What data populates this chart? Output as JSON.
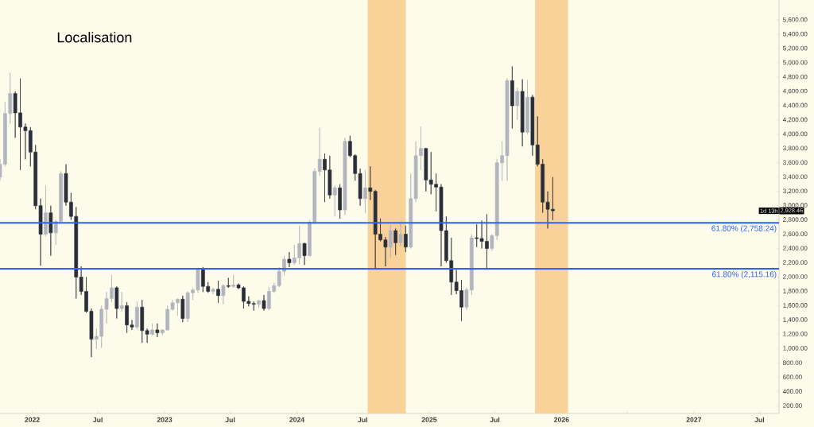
{
  "chart_data": {
    "type": "candlestick",
    "title": "Localisation",
    "x": [
      "2021-10-04",
      "2021-10-18",
      "2021-11-01",
      "2021-11-15",
      "2021-11-29",
      "2021-12-13",
      "2021-12-27",
      "2022-01-10",
      "2022-01-24",
      "2022-02-07",
      "2022-02-21",
      "2022-03-07",
      "2022-03-21",
      "2022-04-04",
      "2022-04-18",
      "2022-05-02",
      "2022-05-16",
      "2022-05-30",
      "2022-06-13",
      "2022-06-27",
      "2022-07-11",
      "2022-07-25",
      "2022-08-08",
      "2022-08-22",
      "2022-09-05",
      "2022-09-19",
      "2022-10-03",
      "2022-10-17",
      "2022-10-31",
      "2022-11-14",
      "2022-11-28",
      "2022-12-12",
      "2022-12-26",
      "2023-01-09",
      "2023-01-23",
      "2023-02-06",
      "2023-02-20",
      "2023-03-06",
      "2023-03-20",
      "2023-04-03",
      "2023-04-17",
      "2023-05-01",
      "2023-05-15",
      "2023-05-29",
      "2023-06-12",
      "2023-06-26",
      "2023-07-10",
      "2023-07-24",
      "2023-08-07",
      "2023-08-21",
      "2023-09-04",
      "2023-09-18",
      "2023-10-02",
      "2023-10-16",
      "2023-10-30",
      "2023-11-13",
      "2023-11-27",
      "2023-12-11",
      "2023-12-25",
      "2024-01-08",
      "2024-01-22",
      "2024-02-05",
      "2024-02-19",
      "2024-03-04",
      "2024-03-18",
      "2024-04-01",
      "2024-04-15",
      "2024-04-29",
      "2024-05-13",
      "2024-05-27",
      "2024-06-10",
      "2024-06-24",
      "2024-07-08",
      "2024-07-22",
      "2024-08-05",
      "2024-08-19",
      "2024-09-02",
      "2024-09-16",
      "2024-09-30",
      "2024-10-14",
      "2024-10-28",
      "2024-11-11",
      "2024-11-25",
      "2024-12-09",
      "2024-12-23",
      "2025-01-06",
      "2025-01-20",
      "2025-02-03",
      "2025-02-17",
      "2025-03-03",
      "2025-03-17",
      "2025-03-31",
      "2025-04-14",
      "2025-04-28",
      "2025-05-12",
      "2025-05-26",
      "2025-06-09",
      "2025-06-23",
      "2025-07-07",
      "2025-07-21",
      "2025-08-04",
      "2025-08-18",
      "2025-09-01",
      "2025-09-15",
      "2025-09-29",
      "2025-10-13",
      "2025-10-27",
      "2025-11-10",
      "2025-11-24",
      "2025-12-08"
    ],
    "ohlc": [
      [
        3400,
        3650,
        3350,
        3580
      ],
      [
        3580,
        4450,
        3550,
        4290
      ],
      [
        4290,
        4860,
        4150,
        4570
      ],
      [
        4570,
        4600,
        3950,
        4300
      ],
      [
        4300,
        4780,
        3500,
        4100
      ],
      [
        4100,
        4150,
        3650,
        4050
      ],
      [
        4050,
        4100,
        3550,
        3750
      ],
      [
        3750,
        3850,
        2950,
        3000
      ],
      [
        3000,
        3100,
        2160,
        2600
      ],
      [
        2600,
        3280,
        2570,
        2900
      ],
      [
        2900,
        3000,
        2300,
        2620
      ],
      [
        2620,
        2800,
        2450,
        2780
      ],
      [
        2780,
        3480,
        2760,
        3450
      ],
      [
        3450,
        3580,
        3000,
        3050
      ],
      [
        3050,
        3180,
        2800,
        2850
      ],
      [
        2850,
        2980,
        1700,
        2000
      ],
      [
        2000,
        2150,
        1750,
        1800
      ],
      [
        1800,
        2000,
        1500,
        1520
      ],
      [
        1520,
        1560,
        880,
        1130
      ],
      [
        1130,
        1280,
        1000,
        1170
      ],
      [
        1170,
        1600,
        1010,
        1550
      ],
      [
        1550,
        1790,
        1350,
        1700
      ],
      [
        1700,
        2030,
        1650,
        1850
      ],
      [
        1850,
        1870,
        1420,
        1560
      ],
      [
        1560,
        1790,
        1520,
        1600
      ],
      [
        1600,
        1650,
        1220,
        1330
      ],
      [
        1330,
        1400,
        1260,
        1300
      ],
      [
        1300,
        1660,
        1270,
        1580
      ],
      [
        1580,
        1680,
        1080,
        1250
      ],
      [
        1250,
        1280,
        1080,
        1200
      ],
      [
        1200,
        1350,
        1180,
        1260
      ],
      [
        1260,
        1350,
        1160,
        1220
      ],
      [
        1220,
        1270,
        1190,
        1260
      ],
      [
        1260,
        1600,
        1250,
        1550
      ],
      [
        1550,
        1680,
        1530,
        1640
      ],
      [
        1640,
        1700,
        1460,
        1690
      ],
      [
        1690,
        1740,
        1370,
        1420
      ],
      [
        1420,
        1800,
        1370,
        1780
      ],
      [
        1780,
        1850,
        1680,
        1820
      ],
      [
        1820,
        2130,
        1780,
        2100
      ],
      [
        2100,
        2140,
        1790,
        1870
      ],
      [
        1870,
        1930,
        1780,
        1800
      ],
      [
        1800,
        1850,
        1760,
        1830
      ],
      [
        1830,
        1950,
        1640,
        1740
      ],
      [
        1740,
        1900,
        1620,
        1880
      ],
      [
        1880,
        1990,
        1850,
        1870
      ],
      [
        1870,
        2030,
        1850,
        1890
      ],
      [
        1890,
        1910,
        1830,
        1850
      ],
      [
        1850,
        1870,
        1560,
        1660
      ],
      [
        1660,
        1730,
        1590,
        1630
      ],
      [
        1630,
        1660,
        1530,
        1620
      ],
      [
        1620,
        1670,
        1570,
        1670
      ],
      [
        1670,
        1750,
        1530,
        1560
      ],
      [
        1560,
        1860,
        1540,
        1800
      ],
      [
        1800,
        1920,
        1780,
        1880
      ],
      [
        1880,
        2140,
        1860,
        2080
      ],
      [
        2080,
        2300,
        2020,
        2250
      ],
      [
        2250,
        2350,
        2140,
        2200
      ],
      [
        2200,
        2450,
        2170,
        2270
      ],
      [
        2270,
        2720,
        2180,
        2470
      ],
      [
        2470,
        2480,
        2170,
        2300
      ],
      [
        2300,
        2800,
        2290,
        2770
      ],
      [
        2770,
        3520,
        2740,
        3480
      ],
      [
        3480,
        4090,
        3420,
        3650
      ],
      [
        3650,
        3730,
        3050,
        3500
      ],
      [
        3500,
        3700,
        3100,
        3150
      ],
      [
        3150,
        3280,
        2850,
        3250
      ],
      [
        3250,
        3300,
        2820,
        2940
      ],
      [
        2940,
        3950,
        2870,
        3900
      ],
      [
        3900,
        3980,
        3680,
        3700
      ],
      [
        3700,
        3720,
        3350,
        3450
      ],
      [
        3450,
        3520,
        3000,
        3100
      ],
      [
        3100,
        3500,
        2900,
        3250
      ],
      [
        3250,
        3550,
        3080,
        3200
      ],
      [
        3200,
        3220,
        2110,
        2600
      ],
      [
        2600,
        2820,
        2500,
        2520
      ],
      [
        2520,
        2560,
        2150,
        2420
      ],
      [
        2420,
        2730,
        2270,
        2650
      ],
      [
        2650,
        2680,
        2310,
        2480
      ],
      [
        2480,
        2780,
        2430,
        2600
      ],
      [
        2600,
        2720,
        2350,
        2420
      ],
      [
        2420,
        3450,
        2400,
        3100
      ],
      [
        3100,
        3900,
        3050,
        3700
      ],
      [
        3700,
        4110,
        3500,
        3800
      ],
      [
        3800,
        3810,
        3200,
        3360
      ],
      [
        3360,
        3750,
        3160,
        3300
      ],
      [
        3300,
        3450,
        2920,
        3260
      ],
      [
        3260,
        3300,
        2150,
        2650
      ],
      [
        2650,
        2850,
        2200,
        2230
      ],
      [
        2230,
        2550,
        1750,
        1930
      ],
      [
        1930,
        2100,
        1760,
        1810
      ],
      [
        1810,
        1960,
        1385,
        1580
      ],
      [
        1580,
        1850,
        1540,
        1820
      ],
      [
        1820,
        2600,
        1750,
        2550
      ],
      [
        2550,
        2740,
        2420,
        2540
      ],
      [
        2540,
        2790,
        2400,
        2500
      ],
      [
        2500,
        2880,
        2120,
        2400
      ],
      [
        2400,
        2600,
        2370,
        2580
      ],
      [
        2580,
        3650,
        2520,
        3600
      ],
      [
        3600,
        3900,
        3350,
        3700
      ],
      [
        3700,
        4780,
        3350,
        4750
      ],
      [
        4750,
        4950,
        4080,
        4400
      ],
      [
        4400,
        4650,
        4200,
        4600
      ],
      [
        4600,
        4770,
        3830,
        4030
      ],
      [
        4030,
        4760,
        4000,
        4520
      ],
      [
        4520,
        4550,
        3700,
        3850
      ],
      [
        3850,
        4250,
        3550,
        3580
      ],
      [
        3580,
        3650,
        2900,
        3050
      ],
      [
        3050,
        3200,
        2680,
        2950
      ],
      [
        2950,
        3400,
        2800,
        2928.46
      ]
    ],
    "xlim": [
      "2021-10-04",
      "2027-08-24"
    ],
    "xticks": [
      {
        "value": "2022",
        "label": "2022"
      },
      {
        "value": "2022-07",
        "label": "Jul"
      },
      {
        "value": "2023",
        "label": "2023"
      },
      {
        "value": "2023-07",
        "label": "Jul"
      },
      {
        "value": "2024",
        "label": "2024"
      },
      {
        "value": "2024-07",
        "label": "Jul"
      },
      {
        "value": "2025",
        "label": "2025"
      },
      {
        "value": "2025-07",
        "label": "Jul"
      },
      {
        "value": "2026",
        "label": "2026"
      },
      {
        "value": "2026-07",
        "label": null
      },
      {
        "value": "2027",
        "label": "2027"
      },
      {
        "value": "2027-07",
        "label": "Jul"
      }
    ],
    "ylim": [
      90,
      5880
    ],
    "yticks": [
      {
        "value": 200,
        "label": "200.00"
      },
      {
        "value": 400,
        "label": "400.00"
      },
      {
        "value": 600,
        "label": "600.00"
      },
      {
        "value": 800,
        "label": "800.00"
      },
      {
        "value": 1000,
        "label": "1,000.00"
      },
      {
        "value": 1200,
        "label": "1,200.00"
      },
      {
        "value": 1400,
        "label": "1,400.00"
      },
      {
        "value": 1600,
        "label": "1,600.00"
      },
      {
        "value": 1800,
        "label": "1,800.00"
      },
      {
        "value": 2000,
        "label": "2,000.00"
      },
      {
        "value": 2200,
        "label": "2,200.00"
      },
      {
        "value": 2400,
        "label": "2,400.00"
      },
      {
        "value": 2600,
        "label": "2,600.00"
      },
      {
        "value": 2800,
        "label": "2,800.00"
      },
      {
        "value": 3000,
        "label": "3,000.00"
      },
      {
        "value": 3200,
        "label": "3,200.00"
      },
      {
        "value": 3400,
        "label": "3,400.00"
      },
      {
        "value": 3600,
        "label": "3,600.00"
      },
      {
        "value": 3800,
        "label": "3,800.00"
      },
      {
        "value": 4000,
        "label": "4,000.00"
      },
      {
        "value": 4200,
        "label": "4,200.00"
      },
      {
        "value": 4400,
        "label": "4,400.00"
      },
      {
        "value": 4600,
        "label": "4,600.00"
      },
      {
        "value": 4800,
        "label": "4,800.00"
      },
      {
        "value": 5000,
        "label": "5,000.00"
      },
      {
        "value": 5200,
        "label": "5,200.00"
      },
      {
        "value": 5400,
        "label": "5,400.00"
      },
      {
        "value": 5600,
        "label": "5,600.00"
      }
    ],
    "bands": [
      {
        "axis": "x",
        "from": "2024-07-15",
        "to": "2024-10-28",
        "color": "#f9d29a"
      },
      {
        "axis": "x",
        "from": "2025-10-20",
        "to": "2026-01-19",
        "color": "#f9d29a"
      }
    ],
    "ref_lines": [
      {
        "axis": "y",
        "value": 2115.16,
        "label": "61.80% (2,115.16)",
        "color": "#2962ff"
      },
      {
        "axis": "y",
        "value": 2758.24,
        "label": "61.80% (2,758.24)",
        "color": "#2962ff"
      }
    ],
    "annotations": [
      "2,928.46",
      "1d 13h"
    ]
  }
}
